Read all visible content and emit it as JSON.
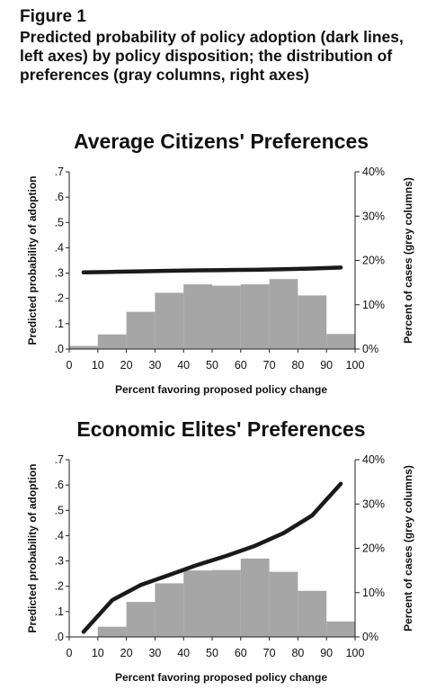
{
  "figure": {
    "label": "Figure 1",
    "caption": "Predicted probability of policy adoption (dark lines, left axes) by policy disposition; the distribution of preferences (gray columns, right axes)"
  },
  "chart_data": [
    {
      "type": "bar+line",
      "title": "Average Citizens' Preferences",
      "xlabel": "Percent favoring proposed policy change",
      "ylabel_left": "Predicted probability of adoption",
      "ylabel_right": "Percent of cases (grey columns)",
      "x_ticks": [
        "0",
        "10",
        "20",
        "30",
        "40",
        "50",
        "60",
        "70",
        "80",
        "90",
        "100"
      ],
      "xlim": [
        0,
        100
      ],
      "y_left_ticks": [
        ".0",
        ".1",
        ".2",
        ".3",
        ".4",
        ".5",
        ".6",
        ".7"
      ],
      "ylim_left": [
        0,
        0.7
      ],
      "y_right_ticks": [
        "0%",
        "10%",
        "20%",
        "30%",
        "40%"
      ],
      "ylim_right": [
        0,
        40
      ],
      "bar_color": "#a6a6a6",
      "line_color": "#1a1a1a",
      "bars": {
        "bin_edges": [
          0,
          10,
          20,
          30,
          40,
          50,
          60,
          70,
          80,
          90,
          100
        ],
        "values": [
          0.7,
          3.3,
          8.4,
          12.7,
          14.6,
          14.3,
          14.6,
          15.8,
          12.1,
          3.4
        ]
      },
      "line": {
        "x": [
          5,
          15,
          25,
          35,
          45,
          55,
          65,
          75,
          85,
          95
        ],
        "y": [
          0.303,
          0.305,
          0.307,
          0.309,
          0.311,
          0.312,
          0.313,
          0.315,
          0.318,
          0.322
        ]
      }
    },
    {
      "type": "bar+line",
      "title": "Economic Elites' Preferences",
      "xlabel": "Percent favoring proposed policy change",
      "ylabel_left": "Predicted probability of adoption",
      "ylabel_right": "Percent of cases (grey columns)",
      "x_ticks": [
        "0",
        "10",
        "20",
        "30",
        "40",
        "50",
        "60",
        "70",
        "80",
        "90",
        "100"
      ],
      "xlim": [
        0,
        100
      ],
      "y_left_ticks": [
        ".0",
        ".1",
        ".2",
        ".3",
        ".4",
        ".5",
        ".6",
        ".7"
      ],
      "ylim_left": [
        0,
        0.7
      ],
      "y_right_ticks": [
        "0%",
        "10%",
        "20%",
        "30%",
        "40%"
      ],
      "ylim_right": [
        0,
        40
      ],
      "bar_color": "#a6a6a6",
      "line_color": "#1a1a1a",
      "bars": {
        "bin_edges": [
          0,
          10,
          20,
          30,
          40,
          50,
          60,
          70,
          80,
          90,
          100
        ],
        "values": [
          0.0,
          2.3,
          7.9,
          12.1,
          15.0,
          15.1,
          17.7,
          14.7,
          10.4,
          3.5
        ]
      },
      "line": {
        "x": [
          5,
          15,
          25,
          35,
          45,
          55,
          65,
          75,
          85,
          95
        ],
        "y": [
          0.02,
          0.145,
          0.205,
          0.245,
          0.285,
          0.32,
          0.36,
          0.41,
          0.48,
          0.605
        ]
      }
    }
  ]
}
